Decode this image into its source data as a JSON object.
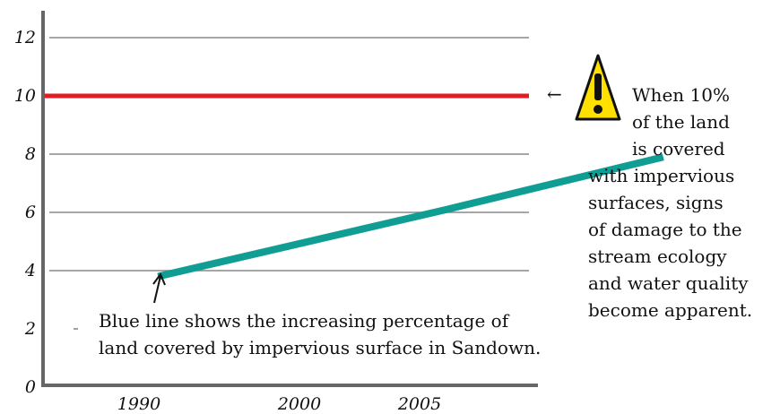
{
  "chart_data": {
    "type": "line",
    "x": [
      1988.5,
      1998.5,
      2006
    ],
    "series": [
      {
        "values": [
          3.8,
          6.1,
          7.9
        ],
        "color": "#0f9d94"
      }
    ],
    "categories": [
      "1990",
      "2000",
      "2005"
    ],
    "yticks": [
      "0",
      "2",
      "4",
      "6",
      "8",
      "10",
      "12"
    ],
    "ylim": [
      0,
      13
    ],
    "grid": true,
    "threshold": {
      "value": 10,
      "color": "#e31b23"
    },
    "annotations": {
      "line_note": [
        "Blue line shows the increasing percentage of",
        "land covered by impervious surface in Sandown."
      ],
      "threshold_note": [
        "When 10%",
        "of the land",
        "is covered",
        "with impervious",
        "surfaces, signs",
        "of damage to the",
        "stream ecology",
        "and water quality",
        "become apparent."
      ],
      "arrow_glyph": "←",
      "warning_icon": "warning-triangle-icon"
    },
    "colors": {
      "axis": "#666666",
      "grid": "#888888",
      "warning_fill": "#ffe000"
    }
  }
}
